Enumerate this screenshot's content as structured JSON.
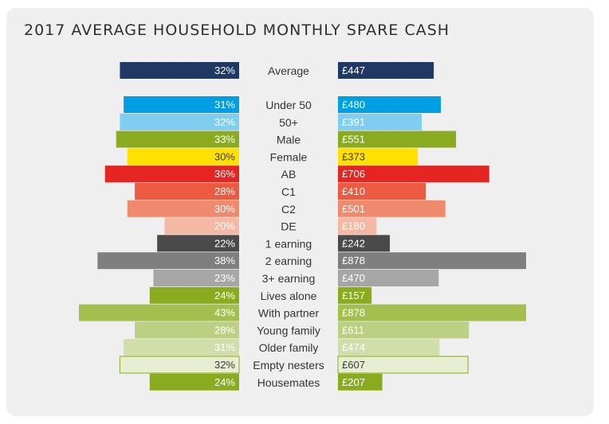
{
  "title": "2017 AVERAGE HOUSEHOLD MONTHLY SPARE CASH",
  "chart_data": {
    "type": "bar",
    "title": "2017 AVERAGE HOUSEHOLD MONTHLY SPARE CASH",
    "layout": "diverging-horizontal",
    "categories": [
      "Average",
      "Under 50",
      "50+",
      "Male",
      "Female",
      "AB",
      "C1",
      "C2",
      "DE",
      "1 earning",
      "2 earning",
      "3+ earning",
      "Lives alone",
      "With partner",
      "Young family",
      "Older family",
      "Empty nesters",
      "Housemates"
    ],
    "series": [
      {
        "values": [
          32,
          31,
          32,
          33,
          30,
          36,
          28,
          30,
          20,
          22,
          38,
          23,
          24,
          43,
          28,
          31,
          32,
          24
        ],
        "labels": [
          "32%",
          "31%",
          "32%",
          "33%",
          "30%",
          "36%",
          "28%",
          "30%",
          "20%",
          "22%",
          "38%",
          "23%",
          "24%",
          "43%",
          "28%",
          "31%",
          "32%",
          "24%"
        ]
      },
      {
        "values": [
          447,
          480,
          391,
          551,
          373,
          706,
          410,
          501,
          180,
          242,
          878,
          470,
          157,
          878,
          611,
          474,
          607,
          207
        ],
        "labels": [
          "£447",
          "£480",
          "£391",
          "£551",
          "£373",
          "£706",
          "£410",
          "£501",
          "£180",
          "£242",
          "£878",
          "£470",
          "£157",
          "£878",
          "£611",
          "£474",
          "£607",
          "£207"
        ]
      }
    ],
    "colors": [
      "#1f3864",
      "#009fe3",
      "#7fcdf0",
      "#8aab1f",
      "#ffe100",
      "#e42521",
      "#ec5a42",
      "#f08a6e",
      "#f5b8a4",
      "#4a4a4a",
      "#7f7f7f",
      "#a6a6a6",
      "#8aab1f",
      "#a4bf4d",
      "#bccf82",
      "#d1dea9",
      "#e7eed2",
      "#8aab1f"
    ],
    "outlined": [
      false,
      false,
      false,
      false,
      false,
      false,
      false,
      false,
      false,
      false,
      false,
      false,
      false,
      false,
      false,
      false,
      true,
      false
    ],
    "outline_color": "#8aab1f",
    "label_colors": [
      "#ffffff",
      "#ffffff",
      "#ffffff",
      "#ffffff",
      "#3a3a3a",
      "#ffffff",
      "#ffffff",
      "#ffffff",
      "#ffffff",
      "#ffffff",
      "#ffffff",
      "#ffffff",
      "#ffffff",
      "#ffffff",
      "#ffffff",
      "#ffffff",
      "#3a3a3a",
      "#ffffff"
    ],
    "grid": false
  }
}
